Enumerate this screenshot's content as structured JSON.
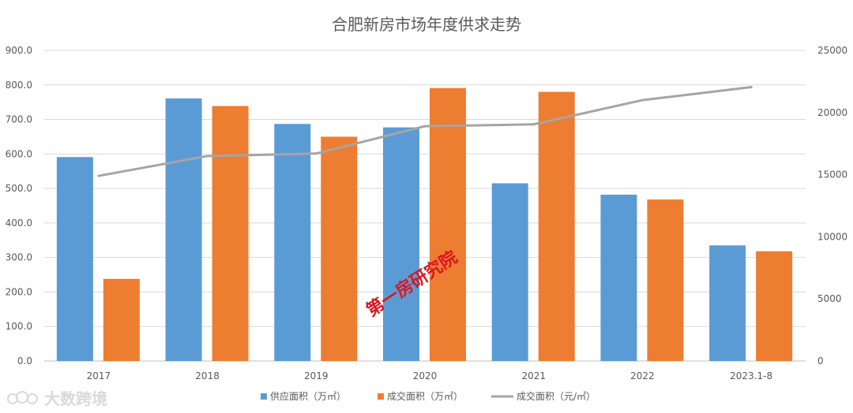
{
  "chart_data": {
    "type": "bar",
    "title": "合肥新房市场年度供求走势",
    "categories": [
      "2017",
      "2018",
      "2019",
      "2020",
      "2021",
      "2022",
      "2023.1-8"
    ],
    "series": [
      {
        "name": "供应面积（万㎡）",
        "type": "bar",
        "axis": "left",
        "color": "#5b9bd5",
        "values": [
          591,
          761,
          687,
          677,
          515,
          482,
          335
        ]
      },
      {
        "name": "成交面积（万㎡）",
        "type": "bar",
        "axis": "left",
        "color": "#ed7d31",
        "values": [
          238,
          739,
          650,
          791,
          780,
          468,
          318
        ]
      },
      {
        "name": "成交面积（元/㎡）",
        "type": "line",
        "axis": "right",
        "color": "#a5a5a5",
        "values": [
          14900,
          16500,
          16700,
          18900,
          19050,
          21000,
          22050
        ]
      }
    ],
    "ylim_left": [
      0,
      900
    ],
    "ylim_right": [
      0,
      25000
    ],
    "yticks_left": [
      "0.0",
      "100.0",
      "200.0",
      "300.0",
      "400.0",
      "500.0",
      "600.0",
      "700.0",
      "800.0",
      "900.0"
    ],
    "yticks_right": [
      "0",
      "5000",
      "10000",
      "15000",
      "20000",
      "25000"
    ],
    "grid": true,
    "legend_position": "bottom"
  },
  "watermark": "第一房研究院",
  "brand_label": "大数跨境"
}
